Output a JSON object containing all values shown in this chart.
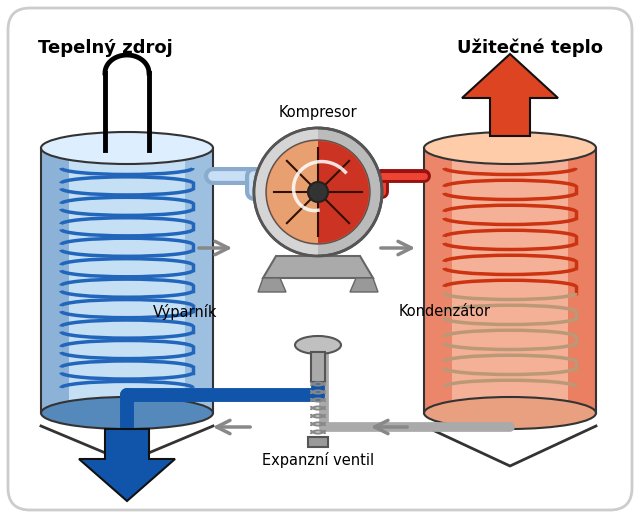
{
  "title_left": "Tepelný zdroj",
  "title_right": "Užitečné teplo",
  "label_compressor": "Kompresor",
  "label_evaporator": "Výparník",
  "label_condenser": "Kondenzátor",
  "label_expansion": "Expanzní ventil",
  "blue_light": "#c5dff5",
  "blue_mid": "#5588bb",
  "blue_dark": "#1155aa",
  "red_light": "#f5b098",
  "red_mid": "#dd4422",
  "coil_blue": "#2266bb",
  "coil_red": "#cc3311",
  "coil_tan": "#bb9977",
  "pipe_blue": "#99bbdd",
  "pipe_red": "#cc2211",
  "gray_dark": "#888888",
  "gray_light": "#cccccc",
  "figsize": [
    6.4,
    5.18
  ],
  "dpi": 100
}
